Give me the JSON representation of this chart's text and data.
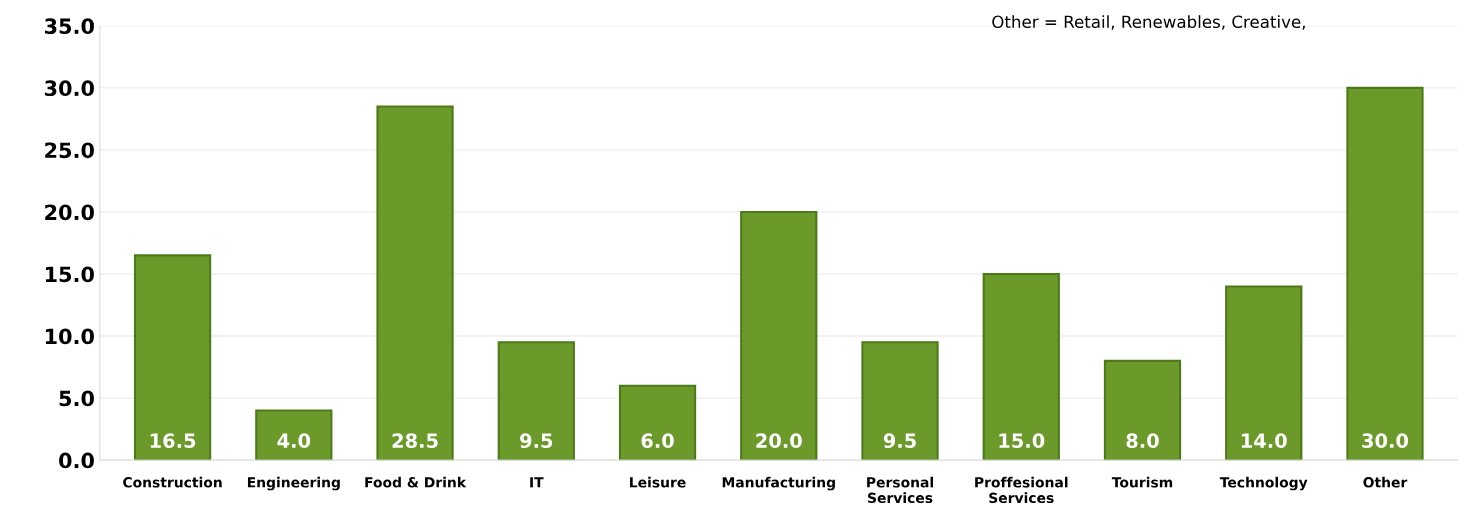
{
  "chart_data": {
    "type": "bar",
    "categories": [
      "Construction",
      "Engineering",
      "Food & Drink",
      "IT",
      "Leisure",
      "Manufacturing",
      "Personal\nServices",
      "Proffesional\nServices",
      "Tourism",
      "Technology",
      "Other"
    ],
    "values": [
      16.5,
      4.0,
      28.5,
      9.5,
      6.0,
      20.0,
      9.5,
      15.0,
      8.0,
      14.0,
      30.0
    ],
    "value_labels": [
      "16.5",
      "4.0",
      "28.5",
      "9.5",
      "6.0",
      "20.0",
      "9.5",
      "15.0",
      "8.0",
      "14.0",
      "30.0"
    ],
    "color": "#6b9a2b",
    "ylim": [
      0,
      35
    ],
    "yticks": [
      {
        "value": 0,
        "label": "0.0"
      },
      {
        "value": 5,
        "label": "5.0"
      },
      {
        "value": 10,
        "label": "10.0"
      },
      {
        "value": 15,
        "label": "15.0"
      },
      {
        "value": 20,
        "label": "20.0"
      },
      {
        "value": 25,
        "label": "25.0"
      },
      {
        "value": 30,
        "label": "30.0"
      },
      {
        "value": 35,
        "label": "35.0"
      }
    ],
    "grid": "y",
    "annotations": [
      "Other = Retail, Renewables, Creative,"
    ]
  }
}
